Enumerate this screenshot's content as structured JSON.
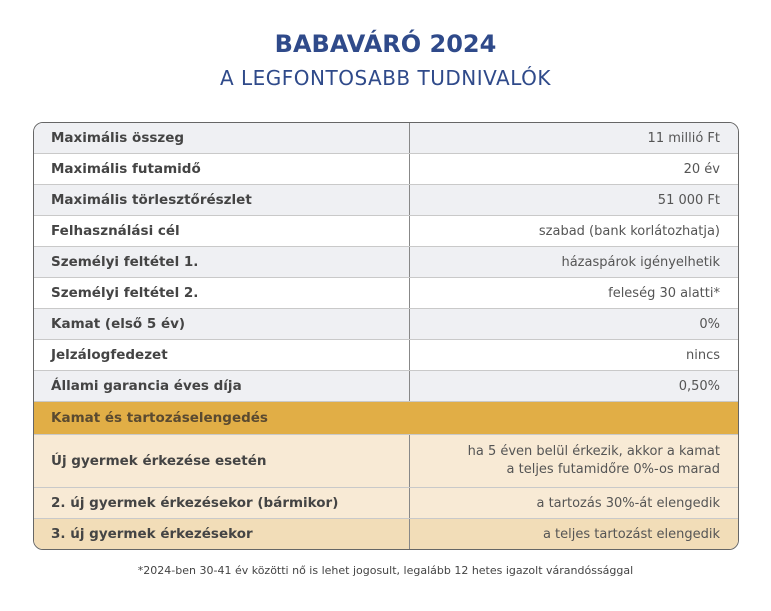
{
  "title": "BABAVÁRÓ 2024",
  "subtitle": "A LEGFONTOSABB TUDNIVALÓK",
  "rows": [
    {
      "label": "Maximális összeg",
      "value": "11 millió Ft"
    },
    {
      "label": "Maximális futamidő",
      "value": "20 év"
    },
    {
      "label": "Maximális törlesztőrészlet",
      "value": "51 000 Ft"
    },
    {
      "label": "Felhasználási cél",
      "value": "szabad (bank korlátozhatja)"
    },
    {
      "label": "Személyi feltétel 1.",
      "value": "házaspárok igényelhetik"
    },
    {
      "label": "Személyi feltétel 2.",
      "value": "feleség 30 alatti*"
    },
    {
      "label": "Kamat (első 5 év)",
      "value": "0%"
    },
    {
      "label": "Jelzálogfedezet",
      "value": "nincs"
    },
    {
      "label": "Állami garancia éves díja",
      "value": "0,50%"
    }
  ],
  "section_header": "Kamat és tartozáselengedés",
  "section_rows": [
    {
      "label": "Új gyermek érkezése esetén",
      "value_line1": "ha 5 éven belül érkezik, akkor a kamat",
      "value_line2": "a teljes futamidőre 0%-os marad"
    },
    {
      "label": "2. új gyermek érkezésekor (bármikor)",
      "value": "a tartozás 30%-át elengedik"
    },
    {
      "label": "3. új gyermek érkezésekor",
      "value": "a teljes tartozást elengedik"
    }
  ],
  "footnote": "*2024-ben 30-41 év közötti nő is lehet jogosult, legalább 12 hetes igazolt várandóssággal",
  "colors": {
    "title": "#2f4a8a",
    "section_header": "#e1ae46",
    "row_tan_light": "#f8ead5",
    "row_tan": "#f2ddb8",
    "row_gray": "#eff0f3"
  }
}
